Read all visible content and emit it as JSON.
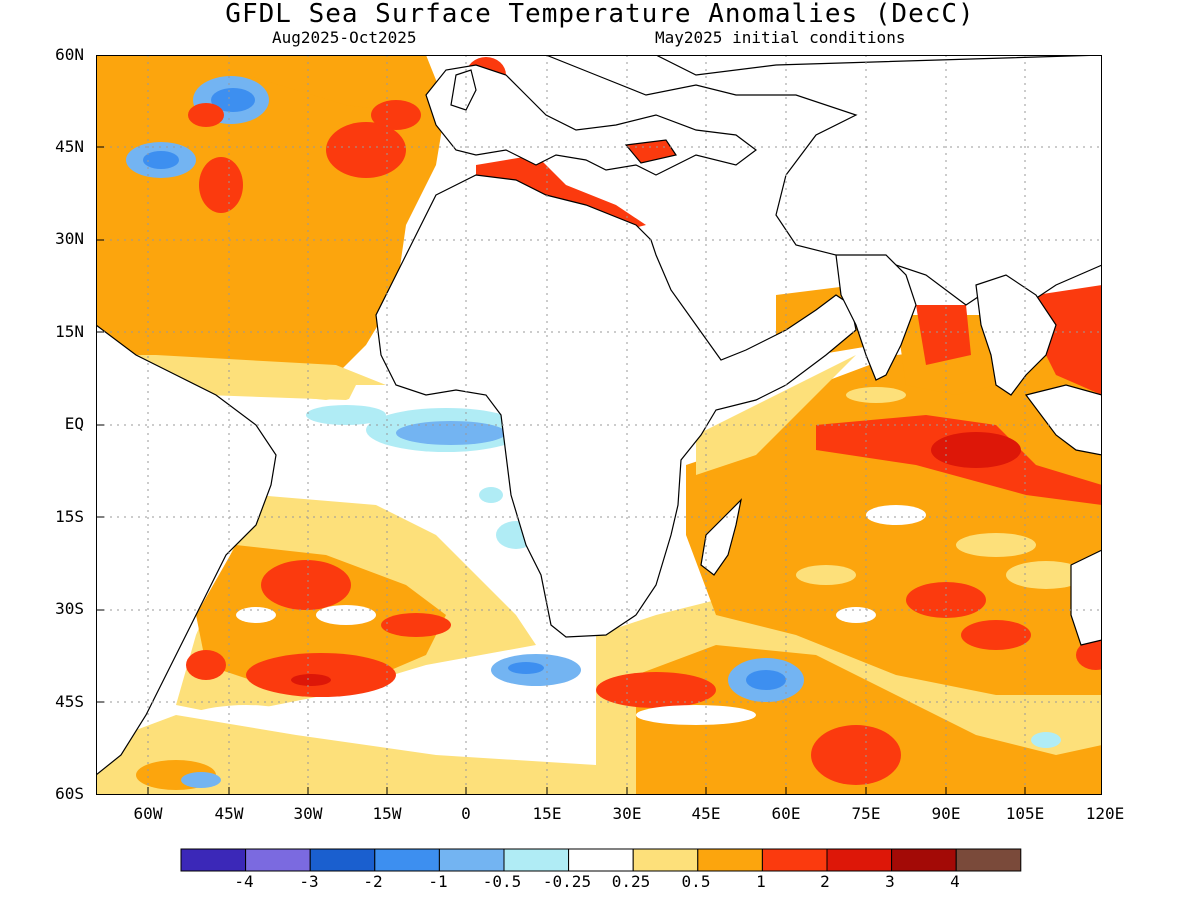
{
  "title": "GFDL Sea Surface Temperature Anomalies (DecC)",
  "subtitle_left": "Aug2025-Oct2025",
  "subtitle_right": "May2025 initial conditions",
  "lat_labels": [
    "60N",
    "45N",
    "30N",
    "15N",
    "EQ",
    "15S",
    "30S",
    "45S",
    "60S"
  ],
  "lon_labels": [
    "60W",
    "45W",
    "30W",
    "15W",
    "0",
    "15E",
    "30E",
    "45E",
    "60E",
    "75E",
    "90E",
    "105E",
    "120E"
  ],
  "colorbar": {
    "colors": [
      "#3b28b8",
      "#7b6ae0",
      "#1a5fcf",
      "#3d8ff0",
      "#73b4f2",
      "#b0ecf5",
      "#ffffff",
      "#fde07a",
      "#fca50d",
      "#fb3a0e",
      "#dd1708",
      "#a30a06",
      "#7a4a3a"
    ],
    "labels": [
      "-4",
      "-3",
      "-2",
      "-1",
      "-0.5",
      "-0.25",
      "0.25",
      "0.5",
      "1",
      "2",
      "3",
      "4"
    ]
  },
  "colors": {
    "land": "#ffffff",
    "coast": "#000000",
    "grid": "#999999"
  }
}
